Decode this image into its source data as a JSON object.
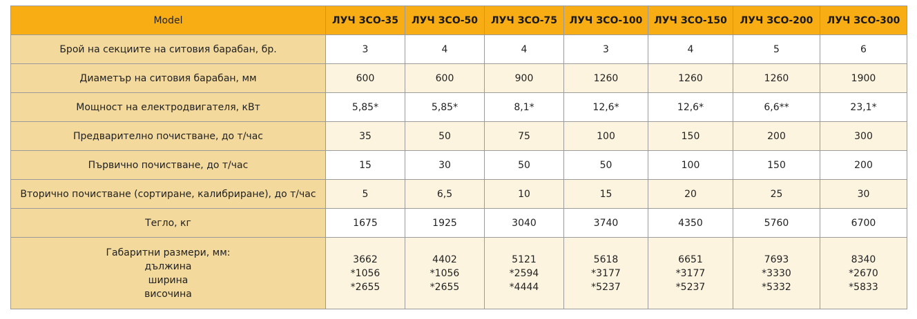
{
  "table": {
    "header": [
      "Model",
      "ЛУЧ ЗСО-35",
      "ЛУЧ ЗСО-50",
      "ЛУЧ ЗСО-75",
      "ЛУЧ ЗСО-100",
      "ЛУЧ ЗСО-150",
      "ЛУЧ ЗСО-200",
      "ЛУЧ ЗСО-300"
    ],
    "rows": [
      {
        "label": [
          "Брой на секциите на ситовия барабан, бр."
        ],
        "values": [
          [
            "3"
          ],
          [
            "4"
          ],
          [
            "4"
          ],
          [
            "3"
          ],
          [
            "4"
          ],
          [
            "5"
          ],
          [
            "6"
          ]
        ]
      },
      {
        "label": [
          "Диаметър на ситовия барабан, мм"
        ],
        "values": [
          [
            "600"
          ],
          [
            "600"
          ],
          [
            "900"
          ],
          [
            "1260"
          ],
          [
            "1260"
          ],
          [
            "1260"
          ],
          [
            "1900"
          ]
        ]
      },
      {
        "label": [
          "Мощност на електродвигателя, кВт"
        ],
        "values": [
          [
            "5,85*"
          ],
          [
            "5,85*"
          ],
          [
            "8,1*"
          ],
          [
            "12,6*"
          ],
          [
            "12,6*"
          ],
          [
            "6,6**"
          ],
          [
            "23,1*"
          ]
        ]
      },
      {
        "label": [
          "Предварително почистване, до т/час"
        ],
        "values": [
          [
            "35"
          ],
          [
            "50"
          ],
          [
            "75"
          ],
          [
            "100"
          ],
          [
            "150"
          ],
          [
            "200"
          ],
          [
            "300"
          ]
        ]
      },
      {
        "label": [
          "Първично почистване, до т/час"
        ],
        "values": [
          [
            "15"
          ],
          [
            "30"
          ],
          [
            "50"
          ],
          [
            "50"
          ],
          [
            "100"
          ],
          [
            "150"
          ],
          [
            "200"
          ]
        ]
      },
      {
        "label": [
          "Вторично почистване (сортиране, калибриране), до т/час"
        ],
        "values": [
          [
            "5"
          ],
          [
            "6,5"
          ],
          [
            "10"
          ],
          [
            "15"
          ],
          [
            "20"
          ],
          [
            "25"
          ],
          [
            "30"
          ]
        ]
      },
      {
        "label": [
          "Тегло, кг"
        ],
        "values": [
          [
            "1675"
          ],
          [
            "1925"
          ],
          [
            "3040"
          ],
          [
            "3740"
          ],
          [
            "4350"
          ],
          [
            "5760"
          ],
          [
            "6700"
          ]
        ]
      },
      {
        "label": [
          "Габаритни размери, мм:",
          "дължина",
          "ширина",
          "височина"
        ],
        "values": [
          [
            "3662",
            "*1056",
            "*2655"
          ],
          [
            "4402",
            "*1056",
            "*2655"
          ],
          [
            "5121",
            "*2594",
            "*4444"
          ],
          [
            "5618",
            "*3177",
            "*5237"
          ],
          [
            "6651",
            "*3177",
            "*5237"
          ],
          [
            "7693",
            "*3330",
            "*5332"
          ],
          [
            "8340",
            "*2670",
            "*5833"
          ]
        ]
      }
    ]
  }
}
